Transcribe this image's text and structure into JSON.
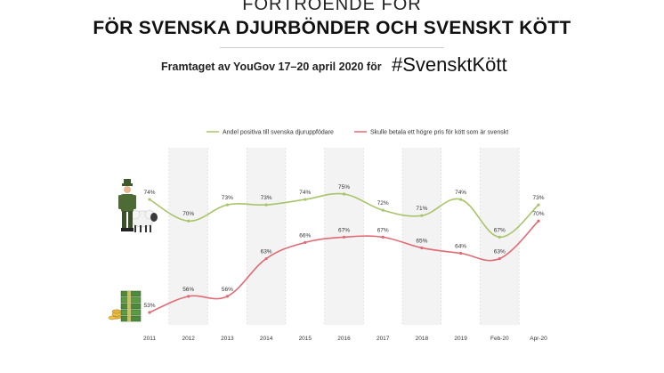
{
  "header": {
    "title_line1": "FÖRTROENDE FÖR",
    "title_line2": "FÖR SVENSKA DJURBÖNDER OCH SVENSKT KÖTT",
    "subtitle": "Framtaget av YouGov 17–20 april 2020 för",
    "hashtag": "#SvensktKött"
  },
  "icons": {
    "farmer": "farmer-with-sheep-icon",
    "money": "money-stack-icon"
  },
  "chart_data": {
    "type": "line",
    "categories": [
      "2011",
      "2012",
      "2013",
      "2014",
      "2015",
      "2016",
      "2017",
      "2018",
      "2019",
      "Feb-20",
      "Apr-20"
    ],
    "series": [
      {
        "name": "Andel positiva till svenska djuruppfödare",
        "color": "#a8c46a",
        "values": [
          74,
          70,
          73,
          73,
          74,
          75,
          72,
          71,
          74,
          67,
          73
        ],
        "labels": [
          "74%",
          "70%",
          "73%",
          "73%",
          "74%",
          "75%",
          "72%",
          "71%",
          "74%",
          "67%",
          "73%"
        ]
      },
      {
        "name": "Skulle betala ett högre pris för kött som är svenskt",
        "color": "#e06a74",
        "values": [
          53,
          56,
          56,
          63,
          66,
          67,
          67,
          65,
          64,
          63,
          70
        ],
        "labels": [
          "53%",
          "56%",
          "56%",
          "63%",
          "66%",
          "67%",
          "67%",
          "65%",
          "64%",
          "63%",
          "70%"
        ]
      }
    ],
    "grid": false,
    "legend_position": "top"
  }
}
